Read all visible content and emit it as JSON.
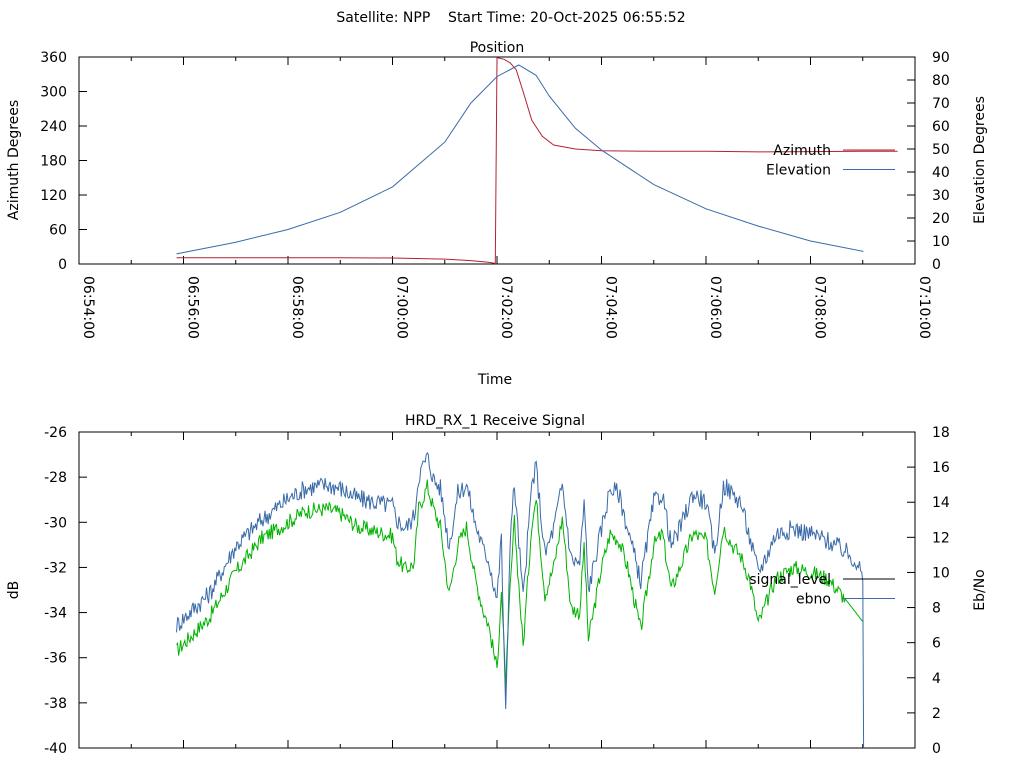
{
  "suptitle": "Satellite: NPP    Start Time: 20-Oct-2025 06:55:52",
  "chart_data": [
    {
      "type": "line",
      "title": "Position",
      "xlabel": "Time",
      "ylabel": "Azimuth Degrees",
      "y2label": "Elevation Degrees",
      "xlim": [
        "06:54:00",
        "07:10:00"
      ],
      "ylim": [
        0,
        360
      ],
      "y2lim": [
        0,
        90
      ],
      "x_ticks": [
        "06:54:00",
        "06:56:00",
        "06:58:00",
        "07:00:00",
        "07:02:00",
        "07:04:00",
        "07:06:00",
        "07:08:00",
        "07:10:00"
      ],
      "y_ticks": [
        "0",
        "60",
        "120",
        "180",
        "240",
        "300",
        "360"
      ],
      "y2_ticks": [
        "0",
        "10",
        "20",
        "30",
        "40",
        "50",
        "60",
        "70",
        "80",
        "90"
      ],
      "legend_position": "right",
      "grid": false,
      "series": [
        {
          "name": "Azimuth",
          "axis": "left",
          "color": "#b22234",
          "points": [
            [
              "06:55:52",
              11
            ],
            [
              "06:57:00",
              11
            ],
            [
              "06:58:00",
              11
            ],
            [
              "06:59:00",
              11
            ],
            [
              "07:00:00",
              10.5
            ],
            [
              "07:01:00",
              8.5
            ],
            [
              "07:01:30",
              6
            ],
            [
              "07:01:50",
              3
            ],
            [
              "07:01:58",
              1
            ],
            [
              "07:02:00",
              359
            ],
            [
              "07:02:08",
              356
            ],
            [
              "07:02:15",
              350
            ],
            [
              "07:02:22",
              338
            ],
            [
              "07:02:30",
              300
            ],
            [
              "07:02:40",
              250
            ],
            [
              "07:02:52",
              222
            ],
            [
              "07:03:05",
              207
            ],
            [
              "07:03:30",
              200
            ],
            [
              "07:04:00",
              197
            ],
            [
              "07:05:00",
              196
            ],
            [
              "07:06:00",
              196
            ],
            [
              "07:07:00",
              195
            ],
            [
              "07:08:00",
              195.5
            ],
            [
              "07:09:00",
              196
            ],
            [
              "07:09:40",
              196
            ]
          ]
        },
        {
          "name": "Elevation",
          "axis": "right",
          "color": "#3a6aa8",
          "points": [
            [
              "06:55:52",
              4.4
            ],
            [
              "06:57:00",
              9.5
            ],
            [
              "06:58:00",
              15
            ],
            [
              "06:59:00",
              22.5
            ],
            [
              "07:00:00",
              33.5
            ],
            [
              "07:01:00",
              53
            ],
            [
              "07:01:30",
              70
            ],
            [
              "07:02:00",
              81.5
            ],
            [
              "07:02:25",
              86.5
            ],
            [
              "07:02:45",
              82
            ],
            [
              "07:03:00",
              73
            ],
            [
              "07:03:30",
              59
            ],
            [
              "07:04:00",
              49.5
            ],
            [
              "07:05:00",
              34.5
            ],
            [
              "07:06:00",
              24
            ],
            [
              "07:07:00",
              16.5
            ],
            [
              "07:08:00",
              10
            ],
            [
              "07:09:00",
              5.5
            ],
            [
              "07:09:00",
              5.2
            ]
          ]
        }
      ]
    },
    {
      "type": "line",
      "title": "HRD_RX_1 Receive Signal",
      "xlabel": "",
      "ylabel": "dB",
      "y2label": "Eb/No",
      "xlim": [
        "06:54:00",
        "07:10:00"
      ],
      "ylim": [
        -40,
        -26
      ],
      "y2lim": [
        0,
        18
      ],
      "y_ticks": [
        "-26",
        "-28",
        "-30",
        "-32",
        "-34",
        "-36",
        "-38",
        "-40"
      ],
      "y2_ticks": [
        "0",
        "2",
        "4",
        "6",
        "8",
        "10",
        "12",
        "14",
        "16",
        "18"
      ],
      "legend_position": "right",
      "grid": false,
      "series": [
        {
          "name": "signal_level",
          "axis": "left",
          "color": "#00b300",
          "points": [
            [
              "06:55:52",
              -35.7
            ],
            [
              "06:56:30",
              -34.2
            ],
            [
              "06:57:00",
              -32.2
            ],
            [
              "06:57:30",
              -30.7
            ],
            [
              "06:58:00",
              -30.0
            ],
            [
              "06:58:20",
              -29.5
            ],
            [
              "06:58:45",
              -29.4
            ],
            [
              "06:59:00",
              -29.6
            ],
            [
              "06:59:20",
              -30.2
            ],
            [
              "06:59:40",
              -30.4
            ],
            [
              "07:00:00",
              -30.6
            ],
            [
              "07:00:05",
              -31.6
            ],
            [
              "07:00:15",
              -32.1
            ],
            [
              "07:00:25",
              -31.8
            ],
            [
              "07:00:30",
              -29.4
            ],
            [
              "07:00:40",
              -28.4
            ],
            [
              "07:00:48",
              -29.5
            ],
            [
              "07:00:55",
              -30.2
            ],
            [
              "07:01:05",
              -33.2
            ],
            [
              "07:01:15",
              -31.0
            ],
            [
              "07:01:25",
              -30.2
            ],
            [
              "07:01:35",
              -32.5
            ],
            [
              "07:01:45",
              -34.0
            ],
            [
              "07:01:50",
              -34.5
            ],
            [
              "07:02:00",
              -36.5
            ],
            [
              "07:02:05",
              -33.0
            ],
            [
              "07:02:10",
              -37.2
            ],
            [
              "07:02:15",
              -33.0
            ],
            [
              "07:02:20",
              -30.0
            ],
            [
              "07:02:30",
              -35.5
            ],
            [
              "07:02:40",
              -30.0
            ],
            [
              "07:02:45",
              -29.0
            ],
            [
              "07:02:55",
              -33.2
            ],
            [
              "07:03:05",
              -32.0
            ],
            [
              "07:03:15",
              -29.8
            ],
            [
              "07:03:25",
              -33.8
            ],
            [
              "07:03:35",
              -34.0
            ],
            [
              "07:03:40",
              -31.0
            ],
            [
              "07:03:45",
              -35.2
            ],
            [
              "07:04:00",
              -32.0
            ],
            [
              "07:04:10",
              -30.5
            ],
            [
              "07:04:20",
              -30.8
            ],
            [
              "07:04:30",
              -32.0
            ],
            [
              "07:04:45",
              -34.8
            ],
            [
              "07:05:00",
              -31.0
            ],
            [
              "07:05:10",
              -30.5
            ],
            [
              "07:05:20",
              -33.0
            ],
            [
              "07:05:30",
              -32.0
            ],
            [
              "07:05:45",
              -30.5
            ],
            [
              "07:06:00",
              -30.8
            ],
            [
              "07:06:10",
              -33.0
            ],
            [
              "07:06:20",
              -30.2
            ],
            [
              "07:06:30",
              -31.0
            ],
            [
              "07:06:40",
              -31.5
            ],
            [
              "07:06:50",
              -32.5
            ],
            [
              "07:07:00",
              -34.5
            ],
            [
              "07:07:10",
              -33.5
            ],
            [
              "07:07:20",
              -32.5
            ],
            [
              "07:07:40",
              -32.0
            ],
            [
              "07:08:00",
              -32.2
            ],
            [
              "07:08:20",
              -32.5
            ],
            [
              "07:08:40",
              -33.4
            ],
            [
              "07:09:00",
              -34.4
            ]
          ]
        },
        {
          "name": "ebno",
          "axis": "right",
          "color": "#3a6aa8",
          "points": [
            [
              "06:55:52",
              7.0
            ],
            [
              "06:56:30",
              8.8
            ],
            [
              "06:57:00",
              11.5
            ],
            [
              "06:57:30",
              13.0
            ],
            [
              "06:58:00",
              14.2
            ],
            [
              "06:58:20",
              14.8
            ],
            [
              "06:58:45",
              15.0
            ],
            [
              "06:59:00",
              14.8
            ],
            [
              "06:59:20",
              14.2
            ],
            [
              "06:59:40",
              14.0
            ],
            [
              "07:00:00",
              13.8
            ],
            [
              "07:00:05",
              13.0
            ],
            [
              "07:00:15",
              12.5
            ],
            [
              "07:00:25",
              13.2
            ],
            [
              "07:00:30",
              15.5
            ],
            [
              "07:00:40",
              16.6
            ],
            [
              "07:00:48",
              15.2
            ],
            [
              "07:00:55",
              14.8
            ],
            [
              "07:01:05",
              11.5
            ],
            [
              "07:01:15",
              14.5
            ],
            [
              "07:01:25",
              15.0
            ],
            [
              "07:01:35",
              12.8
            ],
            [
              "07:01:45",
              11.2
            ],
            [
              "07:01:50",
              10.8
            ],
            [
              "07:02:00",
              8.5
            ],
            [
              "07:02:05",
              12.0
            ],
            [
              "07:02:10",
              1.8
            ],
            [
              "07:02:15",
              12.0
            ],
            [
              "07:02:20",
              15.0
            ],
            [
              "07:02:30",
              8.5
            ],
            [
              "07:02:40",
              15.0
            ],
            [
              "07:02:45",
              16.0
            ],
            [
              "07:02:55",
              11.0
            ],
            [
              "07:03:05",
              12.5
            ],
            [
              "07:03:15",
              15.0
            ],
            [
              "07:03:25",
              10.8
            ],
            [
              "07:03:35",
              10.5
            ],
            [
              "07:03:40",
              14.0
            ],
            [
              "07:03:45",
              9.0
            ],
            [
              "07:04:00",
              12.5
            ],
            [
              "07:04:10",
              14.8
            ],
            [
              "07:04:20",
              14.5
            ],
            [
              "07:04:30",
              12.5
            ],
            [
              "07:04:45",
              9.5
            ],
            [
              "07:05:00",
              14.0
            ],
            [
              "07:05:10",
              14.5
            ],
            [
              "07:05:20",
              11.5
            ],
            [
              "07:05:30",
              12.5
            ],
            [
              "07:05:45",
              14.5
            ],
            [
              "07:06:00",
              14.0
            ],
            [
              "07:06:10",
              11.0
            ],
            [
              "07:06:20",
              15.0
            ],
            [
              "07:06:30",
              14.5
            ],
            [
              "07:06:40",
              14.0
            ],
            [
              "07:06:50",
              12.0
            ],
            [
              "07:07:00",
              10.0
            ],
            [
              "07:07:10",
              11.0
            ],
            [
              "07:07:20",
              12.2
            ],
            [
              "07:07:40",
              12.5
            ],
            [
              "07:08:00",
              12.2
            ],
            [
              "07:08:20",
              11.8
            ],
            [
              "07:08:40",
              11.2
            ],
            [
              "07:08:55",
              10.5
            ],
            [
              "07:09:00",
              9.5
            ],
            [
              "07:09:01",
              0
            ]
          ]
        }
      ]
    }
  ]
}
